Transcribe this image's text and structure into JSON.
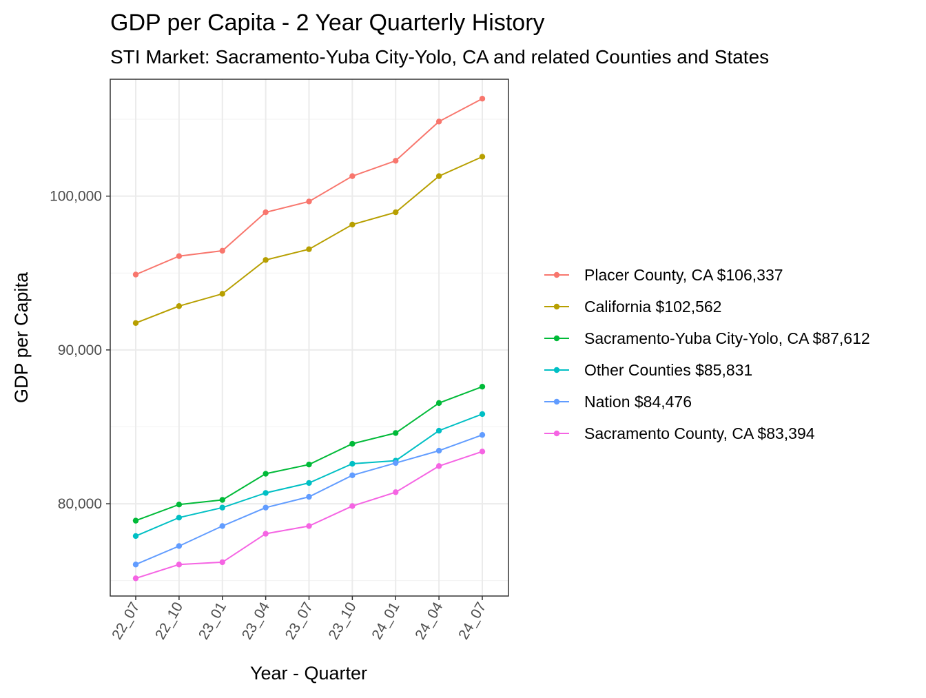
{
  "chart_data": {
    "type": "line",
    "title": "GDP per Capita - 2 Year Quarterly History",
    "subtitle": "STI Market: Sacramento-Yuba City-Yolo, CA and related Counties and States",
    "xlabel": "Year - Quarter",
    "ylabel": "GDP per Capita",
    "categories": [
      "22_07",
      "22_10",
      "23_01",
      "23_04",
      "23_07",
      "23_10",
      "24_01",
      "24_04",
      "24_07"
    ],
    "ylim": [
      74000,
      107600
    ],
    "yticks": [
      80000,
      90000,
      100000
    ],
    "ytick_labels": [
      "80,000",
      "90,000",
      "100,000"
    ],
    "grid": true,
    "legend_position": "right",
    "series": [
      {
        "name": "Placer County, CA $106,337",
        "color": "#F8766D",
        "values": [
          94900,
          96100,
          96450,
          98950,
          99650,
          101300,
          102300,
          104850,
          106337
        ]
      },
      {
        "name": "California $102,562",
        "color": "#B79F00",
        "values": [
          91750,
          92850,
          93650,
          95850,
          96550,
          98150,
          98950,
          101300,
          102562
        ]
      },
      {
        "name": "Sacramento-Yuba City-Yolo, CA $87,612",
        "color": "#00BA38",
        "values": [
          78900,
          79950,
          80250,
          81950,
          82550,
          83900,
          84600,
          86550,
          87612
        ]
      },
      {
        "name": "Other Counties $85,831",
        "color": "#00BFC4",
        "values": [
          77900,
          79100,
          79750,
          80700,
          81350,
          82600,
          82800,
          84750,
          85831
        ]
      },
      {
        "name": "Nation $84,476",
        "color": "#619CFF",
        "values": [
          76050,
          77250,
          78550,
          79750,
          80450,
          81850,
          82650,
          83450,
          84476
        ]
      },
      {
        "name": "Sacramento County, CA $83,394",
        "color": "#F564E3",
        "values": [
          75150,
          76050,
          76200,
          78050,
          78550,
          79850,
          80750,
          82450,
          83394
        ]
      }
    ]
  }
}
